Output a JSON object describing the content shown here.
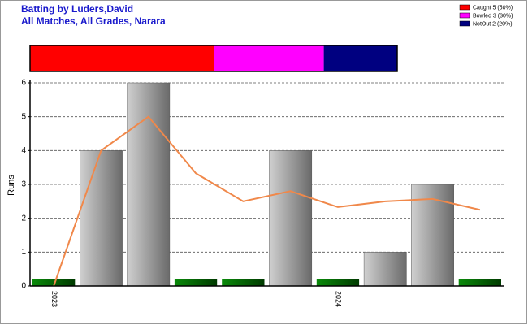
{
  "chart_data": {
    "type": "bar",
    "title": "Batting by Luders,David",
    "subtitle": "All Matches, All Grades, Narara",
    "dismissals": [
      {
        "label": "Caught 5 (50%)",
        "value": 5,
        "color": "#ff0000"
      },
      {
        "label": "Bowled 3 (30%)",
        "value": 3,
        "color": "#ff00ff"
      },
      {
        "label": "NotOut 2 (20%)",
        "value": 2,
        "color": "#000080"
      }
    ],
    "y_label": "Runs",
    "categories": [
      "2023",
      null,
      null,
      null,
      null,
      null,
      "2024",
      null,
      null,
      null
    ],
    "values": [
      0,
      4,
      6,
      0,
      0,
      4,
      0,
      1,
      3,
      0
    ],
    "average": [
      0,
      4,
      5,
      3.33,
      2.5,
      2.8,
      2.33,
      2.5,
      2.57,
      2.25
    ],
    "bar_color": "#8c8c8c",
    "zero_color": "#006400",
    "line_color": "#f0884a",
    "ylim": [
      0,
      6
    ],
    "yticks": [
      0,
      1,
      2,
      3,
      4,
      5,
      6
    ],
    "grid": true
  }
}
